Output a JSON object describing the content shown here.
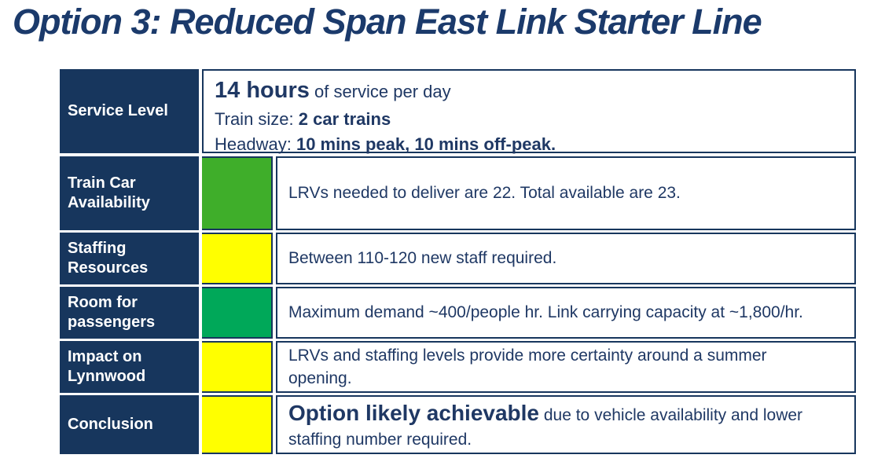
{
  "title": "Option 3: Reduced Span East Link Starter Line",
  "colors": {
    "navy_fill": "#17365D",
    "text_navy": "#1F3864",
    "status_green_bright": "#3FAE2A",
    "status_green_emerald": "#00A859",
    "status_yellow": "#FFFF00"
  },
  "service_level": {
    "label": "Service Level",
    "hours_bold": "14 hours",
    "hours_rest": " of service per day",
    "train_size_label": "Train size: ",
    "train_size_value": "2 car trains",
    "headway_label": "Headway: ",
    "headway_value": "10 mins peak, 10 mins off-peak."
  },
  "rows": [
    {
      "label": "Train Car Availability",
      "status": "green",
      "status_color": "#3FAE2A",
      "text": "LRVs needed to deliver are 22. Total available are 23."
    },
    {
      "label": "Staffing Resources",
      "status": "yellow",
      "status_color": "#FFFF00",
      "text": "Between 110-120 new staff required."
    },
    {
      "label": "Room for passengers",
      "status": "green",
      "status_color": "#00A859",
      "text": "Maximum demand ~400/people hr. Link carrying capacity at ~1,800/hr."
    },
    {
      "label": "Impact on Lynnwood",
      "status": "yellow",
      "status_color": "#FFFF00",
      "text": "LRVs and staffing levels provide more certainty around a summer opening."
    }
  ],
  "conclusion": {
    "label": "Conclusion",
    "status": "yellow",
    "status_color": "#FFFF00",
    "bold_text": "Option likely achievable",
    "rest_text": " due to vehicle availability and lower staffing number required."
  }
}
